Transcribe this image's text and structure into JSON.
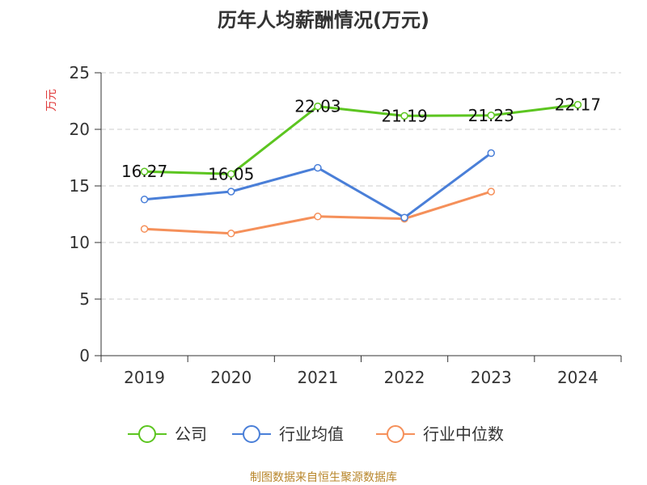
{
  "chart_data": {
    "type": "line",
    "title": "历年人均薪酬情况(万元)",
    "ylabel": "万元",
    "xlabel": "",
    "categories": [
      "2019",
      "2020",
      "2021",
      "2022",
      "2023",
      "2024"
    ],
    "ylim": [
      0,
      25
    ],
    "yticks": [
      0,
      5,
      10,
      15,
      20,
      25
    ],
    "grid": "horizontal-dashed",
    "legend_position": "bottom",
    "series": [
      {
        "name": "公司",
        "color": "#5cc520",
        "values": [
          16.27,
          16.05,
          22.03,
          21.19,
          21.23,
          22.17
        ],
        "labels": [
          "16.27",
          "16.05",
          "22.03",
          "21.19",
          "21.23",
          "22.17"
        ]
      },
      {
        "name": "行业均值",
        "color": "#4a7fd8",
        "values": [
          13.8,
          14.5,
          16.6,
          12.2,
          17.9,
          null
        ]
      },
      {
        "name": "行业中位数",
        "color": "#f5905a",
        "values": [
          11.2,
          10.8,
          12.3,
          12.1,
          14.5,
          null
        ]
      }
    ]
  },
  "source": "制图数据来自恒生聚源数据库"
}
